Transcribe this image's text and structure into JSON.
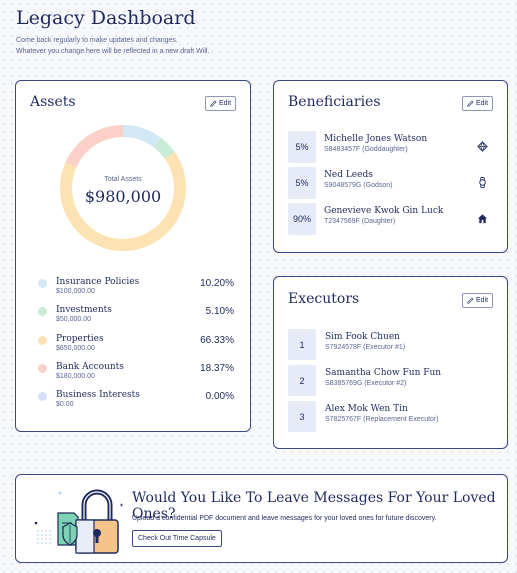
{
  "header": {
    "title": "Legacy Dashboard",
    "subtitle_line1": "Come back regularly to make updates and changes.",
    "subtitle_line2": "Whatever you change here will be reflected in a new draft Will."
  },
  "assets": {
    "title": "Assets",
    "edit_label": "Edit",
    "total_label": "Total Assets",
    "total_value": "$980,000",
    "items": [
      {
        "name": "Insurance Policies",
        "amount": "$100,000.00",
        "percent": "10.20%",
        "value": 10.2,
        "color": "#d3e8f6"
      },
      {
        "name": "Investments",
        "amount": "$50,000.00",
        "percent": "5.10%",
        "value": 5.1,
        "color": "#c9ebd9"
      },
      {
        "name": "Properties",
        "amount": "$650,000.00",
        "percent": "66.33%",
        "value": 66.33,
        "color": "#fde2b3"
      },
      {
        "name": "Bank Accounts",
        "amount": "$180,000.00",
        "percent": "18.37%",
        "value": 18.37,
        "color": "#fbd1c7"
      },
      {
        "name": "Business Interests",
        "amount": "$0.00",
        "percent": "0.00%",
        "value": 0.0,
        "color": "#d6e1f9"
      }
    ]
  },
  "beneficiaries": {
    "title": "Beneficiaries",
    "edit_label": "Edit",
    "items": [
      {
        "percent": "5%",
        "name": "Michelle Jones Watson",
        "detail": "S8483457F (Goddaughter)",
        "icon": "diamond-icon"
      },
      {
        "percent": "5%",
        "name": "Ned Leeds",
        "detail": "S9048579G (Godson)",
        "icon": "watch-icon"
      },
      {
        "percent": "90%",
        "name": "Genevieve Kwok Gin Luck",
        "detail": "T2347569F (Daughter)",
        "icon": "house-icon"
      }
    ]
  },
  "executors": {
    "title": "Executors",
    "edit_label": "Edit",
    "items": [
      {
        "number": "1",
        "name": "Sim Fook Chuen",
        "detail": "S7924578F (Executor #1)"
      },
      {
        "number": "2",
        "name": "Samantha Chow Fun Fun",
        "detail": "S8385769G (Executor #2)"
      },
      {
        "number": "3",
        "name": "Alex Mok Wen Tin",
        "detail": "S7825767F (Replacement Executor)"
      }
    ]
  },
  "capsule": {
    "title": "Would You Like To Leave Messages For Your Loved Ones?",
    "description": "Upload a confidential PDF document and leave messages for your loved ones for future discovery.",
    "button_label": "Check Out Time Capsule"
  },
  "colors": {
    "navy": "#1f2a5c",
    "border": "#3a4585",
    "badge_bg": "#e7ebf8"
  }
}
